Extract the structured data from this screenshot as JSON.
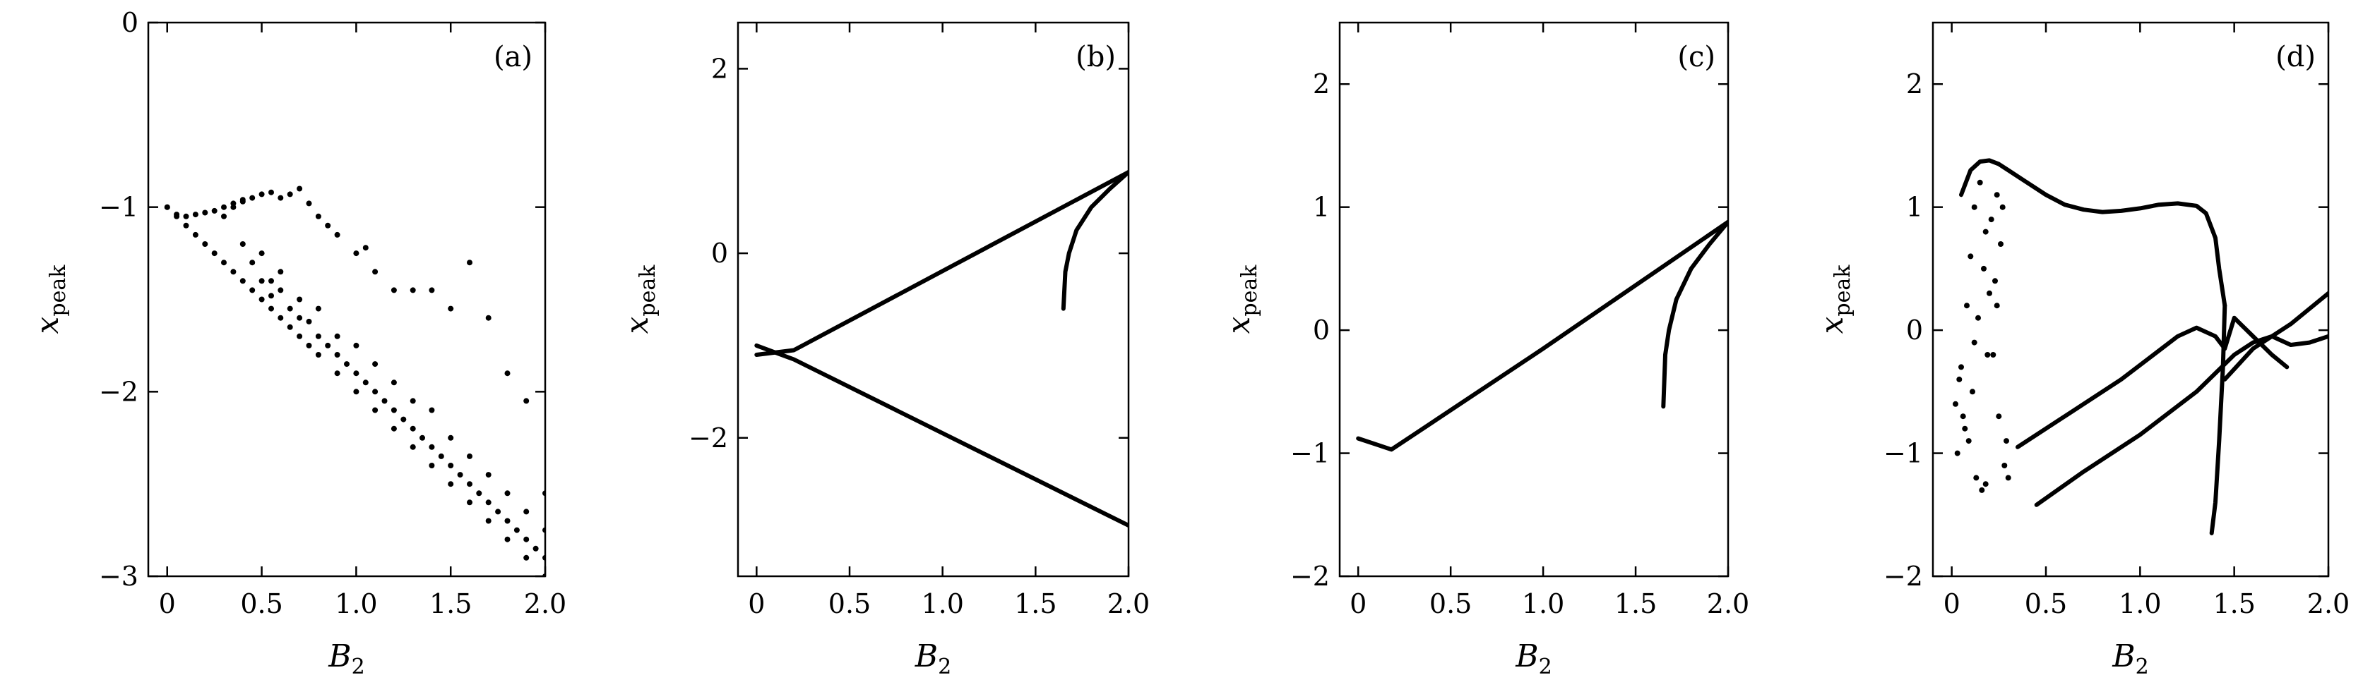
{
  "figure": {
    "panels": [
      "(a)",
      "(b)",
      "(c)",
      "(d)"
    ]
  },
  "chart_data": [
    {
      "id": "a",
      "type": "scatter",
      "panel_label": "(a)",
      "xlabel": "B",
      "xlabel_sub": "2",
      "ylabel": "x",
      "ylabel_sub": "peak",
      "xlim": [
        -0.1,
        2.0
      ],
      "ylim": [
        -3,
        0
      ],
      "xticks": [
        0,
        0.5,
        1.0,
        1.5,
        2.0
      ],
      "xtick_labels": [
        "0",
        "0.5",
        "1.0",
        "1.5",
        "2.0"
      ],
      "yticks": [
        -3,
        -2,
        -1,
        0
      ],
      "ytick_labels": [
        "−3",
        "−2",
        "−1",
        "0"
      ],
      "series": [
        {
          "kind": "points",
          "x": [
            0.0,
            0.05,
            0.1,
            0.15,
            0.2,
            0.25,
            0.3,
            0.35,
            0.4,
            0.45,
            0.5,
            0.55,
            0.6,
            0.65,
            0.7,
            0.75,
            0.8,
            0.9,
            1.0,
            1.1,
            1.2,
            1.3,
            1.4,
            1.5,
            1.6,
            1.7,
            1.8,
            1.9,
            2.0
          ],
          "y": [
            -1.0,
            -1.05,
            -1.1,
            -1.15,
            -1.2,
            -1.25,
            -1.3,
            -1.35,
            -1.4,
            -1.45,
            -1.5,
            -1.55,
            -1.6,
            -1.65,
            -1.7,
            -1.75,
            -1.8,
            -1.9,
            -2.0,
            -2.1,
            -2.2,
            -2.3,
            -2.4,
            -2.5,
            -2.6,
            -2.7,
            -2.8,
            -2.9,
            -3.0
          ]
        },
        {
          "kind": "points",
          "x": [
            0.0,
            0.05,
            0.1,
            0.15,
            0.2,
            0.25,
            0.3,
            0.35,
            0.4
          ],
          "y": [
            -1.0,
            -1.04,
            -1.05,
            -1.04,
            -1.03,
            -1.02,
            -1.0,
            -0.98,
            -0.96
          ]
        },
        {
          "kind": "points",
          "x": [
            0.3,
            0.35,
            0.4,
            0.45,
            0.5,
            0.55,
            0.6,
            0.65,
            0.7,
            0.75,
            0.8,
            0.85,
            0.9,
            1.0,
            1.05,
            1.1,
            1.2,
            1.3,
            1.4,
            1.5,
            1.6,
            1.7,
            1.8,
            1.9,
            2.0
          ],
          "y": [
            -1.05,
            -1.0,
            -0.97,
            -0.95,
            -0.93,
            -0.92,
            -0.95,
            -0.93,
            -0.9,
            -0.98,
            -1.05,
            -1.1,
            -1.15,
            -1.25,
            -1.22,
            -1.35,
            -1.45,
            -1.45,
            -1.45,
            -1.55,
            -1.3,
            -1.6,
            -1.9,
            -2.05,
            -2.55
          ]
        },
        {
          "kind": "points",
          "x": [
            0.4,
            0.45,
            0.5,
            0.55,
            0.6,
            0.7,
            0.8,
            0.9,
            1.0,
            1.1,
            1.2,
            1.3,
            1.4,
            1.5,
            1.6,
            1.7,
            1.8,
            1.9,
            2.0
          ],
          "y": [
            -1.2,
            -1.3,
            -1.25,
            -1.4,
            -1.35,
            -1.5,
            -1.55,
            -1.7,
            -1.75,
            -1.85,
            -1.95,
            -2.05,
            -2.1,
            -2.25,
            -2.35,
            -2.45,
            -2.55,
            -2.65,
            -2.75
          ]
        },
        {
          "kind": "points",
          "x": [
            0.5,
            0.55,
            0.6,
            0.65,
            0.7,
            0.75,
            0.8,
            0.85,
            0.9,
            0.95,
            1.0,
            1.05,
            1.1,
            1.15,
            1.2,
            1.25,
            1.3,
            1.35,
            1.4,
            1.45,
            1.5,
            1.55,
            1.6,
            1.65,
            1.7,
            1.75,
            1.8,
            1.85,
            1.9,
            1.95,
            2.0
          ],
          "y": [
            -1.4,
            -1.48,
            -1.45,
            -1.55,
            -1.6,
            -1.62,
            -1.7,
            -1.75,
            -1.8,
            -1.85,
            -1.9,
            -1.95,
            -2.0,
            -2.05,
            -2.1,
            -2.15,
            -2.2,
            -2.25,
            -2.3,
            -2.35,
            -2.4,
            -2.45,
            -2.5,
            -2.55,
            -2.6,
            -2.65,
            -2.7,
            -2.75,
            -2.8,
            -2.85,
            -2.9
          ]
        }
      ]
    },
    {
      "id": "b",
      "type": "scatter",
      "panel_label": "(b)",
      "xlabel": "B",
      "xlabel_sub": "2",
      "ylabel": "x",
      "ylabel_sub": "peak",
      "xlim": [
        -0.1,
        2.0
      ],
      "ylim": [
        -3.5,
        2.5
      ],
      "xticks": [
        0,
        0.5,
        1.0,
        1.5,
        2.0
      ],
      "xtick_labels": [
        "0",
        "0.5",
        "1.0",
        "1.5",
        "2.0"
      ],
      "yticks": [
        -2,
        0,
        2
      ],
      "ytick_labels": [
        "−2",
        "0",
        "2"
      ],
      "series": [
        {
          "kind": "line",
          "x": [
            0.0,
            0.2,
            2.0
          ],
          "y": [
            -1.1,
            -1.05,
            0.88
          ]
        },
        {
          "kind": "line",
          "x": [
            0.0,
            0.2,
            2.0
          ],
          "y": [
            -1.0,
            -1.15,
            -2.95
          ]
        },
        {
          "kind": "line",
          "x": [
            1.65,
            1.66,
            1.68,
            1.72,
            1.8,
            1.9,
            2.0
          ],
          "y": [
            -0.6,
            -0.2,
            0.0,
            0.25,
            0.5,
            0.7,
            0.88
          ]
        }
      ]
    },
    {
      "id": "c",
      "type": "scatter",
      "panel_label": "(c)",
      "xlabel": "B",
      "xlabel_sub": "2",
      "ylabel": "x",
      "ylabel_sub": "peak",
      "xlim": [
        -0.1,
        2.0
      ],
      "ylim": [
        -2,
        2.5
      ],
      "xticks": [
        0,
        0.5,
        1.0,
        1.5,
        2.0
      ],
      "xtick_labels": [
        "0",
        "0.5",
        "1.0",
        "1.5",
        "2.0"
      ],
      "yticks": [
        -2,
        -1,
        0,
        1,
        2
      ],
      "ytick_labels": [
        "−2",
        "−1",
        "0",
        "1",
        "2"
      ],
      "series": [
        {
          "kind": "line",
          "x": [
            0.0,
            0.1,
            0.18,
            0.3,
            1.0,
            2.0
          ],
          "y": [
            -0.88,
            -0.93,
            -0.97,
            -0.85,
            -0.15,
            0.88
          ]
        },
        {
          "kind": "line",
          "x": [
            1.65,
            1.66,
            1.68,
            1.72,
            1.8,
            1.9,
            2.0
          ],
          "y": [
            -0.62,
            -0.2,
            0.0,
            0.25,
            0.5,
            0.7,
            0.88
          ]
        }
      ]
    },
    {
      "id": "d",
      "type": "scatter",
      "panel_label": "(d)",
      "xlabel": "B",
      "xlabel_sub": "2",
      "ylabel": "x",
      "ylabel_sub": "peak",
      "xlim": [
        -0.1,
        2.0
      ],
      "ylim": [
        -2,
        2.5
      ],
      "xticks": [
        0,
        0.5,
        1.0,
        1.5,
        2.0
      ],
      "xtick_labels": [
        "0",
        "0.5",
        "1.0",
        "1.5",
        "2.0"
      ],
      "yticks": [
        -2,
        -1,
        0,
        1,
        2
      ],
      "ytick_labels": [
        "−2",
        "−1",
        "0",
        "1",
        "2"
      ],
      "series": [
        {
          "kind": "line",
          "x": [
            0.05,
            0.1,
            0.15,
            0.2,
            0.25,
            0.3,
            0.4,
            0.5,
            0.6,
            0.7,
            0.8,
            0.9,
            1.0,
            1.1,
            1.2,
            1.3,
            1.35,
            1.4,
            1.42,
            1.45
          ],
          "y": [
            1.1,
            1.3,
            1.37,
            1.38,
            1.35,
            1.3,
            1.2,
            1.1,
            1.02,
            0.98,
            0.96,
            0.97,
            0.99,
            1.02,
            1.03,
            1.01,
            0.95,
            0.75,
            0.5,
            0.2
          ]
        },
        {
          "kind": "line",
          "x": [
            1.45,
            1.44,
            1.42,
            1.4,
            1.38
          ],
          "y": [
            0.2,
            -0.3,
            -0.9,
            -1.4,
            -1.65
          ]
        },
        {
          "kind": "line",
          "x": [
            0.35,
            0.6,
            0.9,
            1.2,
            1.3,
            1.4,
            1.45,
            1.5,
            1.6,
            1.7,
            1.78
          ],
          "y": [
            -0.95,
            -0.7,
            -0.4,
            -0.05,
            0.02,
            -0.05,
            -0.15,
            0.1,
            -0.05,
            -0.2,
            -0.3
          ]
        },
        {
          "kind": "line",
          "x": [
            0.45,
            0.7,
            1.0,
            1.3,
            1.5,
            1.6,
            1.7,
            1.8,
            1.9,
            2.0
          ],
          "y": [
            -1.42,
            -1.15,
            -0.85,
            -0.5,
            -0.2,
            -0.1,
            -0.05,
            -0.12,
            -0.1,
            -0.05
          ]
        },
        {
          "kind": "line",
          "x": [
            1.45,
            1.6,
            1.8,
            2.0
          ],
          "y": [
            -0.4,
            -0.15,
            0.05,
            0.3
          ]
        },
        {
          "kind": "points",
          "x": [
            0.02,
            0.05,
            0.08,
            0.1,
            0.12,
            0.15,
            0.18,
            0.2,
            0.22,
            0.25,
            0.28,
            0.3,
            0.03,
            0.07,
            0.11,
            0.14,
            0.17,
            0.21,
            0.24,
            0.27,
            0.04,
            0.09,
            0.13,
            0.16,
            0.19,
            0.23,
            0.26,
            0.29,
            0.06,
            0.12,
            0.18,
            0.24
          ],
          "y": [
            -0.6,
            -0.3,
            0.2,
            0.6,
            1.0,
            1.2,
            0.8,
            0.3,
            -0.2,
            -0.7,
            -1.1,
            -1.2,
            -1.0,
            -0.8,
            -0.5,
            0.1,
            0.5,
            0.9,
            1.1,
            1.0,
            -0.4,
            -0.9,
            -1.2,
            -1.3,
            -0.2,
            0.4,
            0.7,
            -0.9,
            -0.7,
            -0.1,
            -1.25,
            0.2
          ]
        }
      ]
    }
  ]
}
